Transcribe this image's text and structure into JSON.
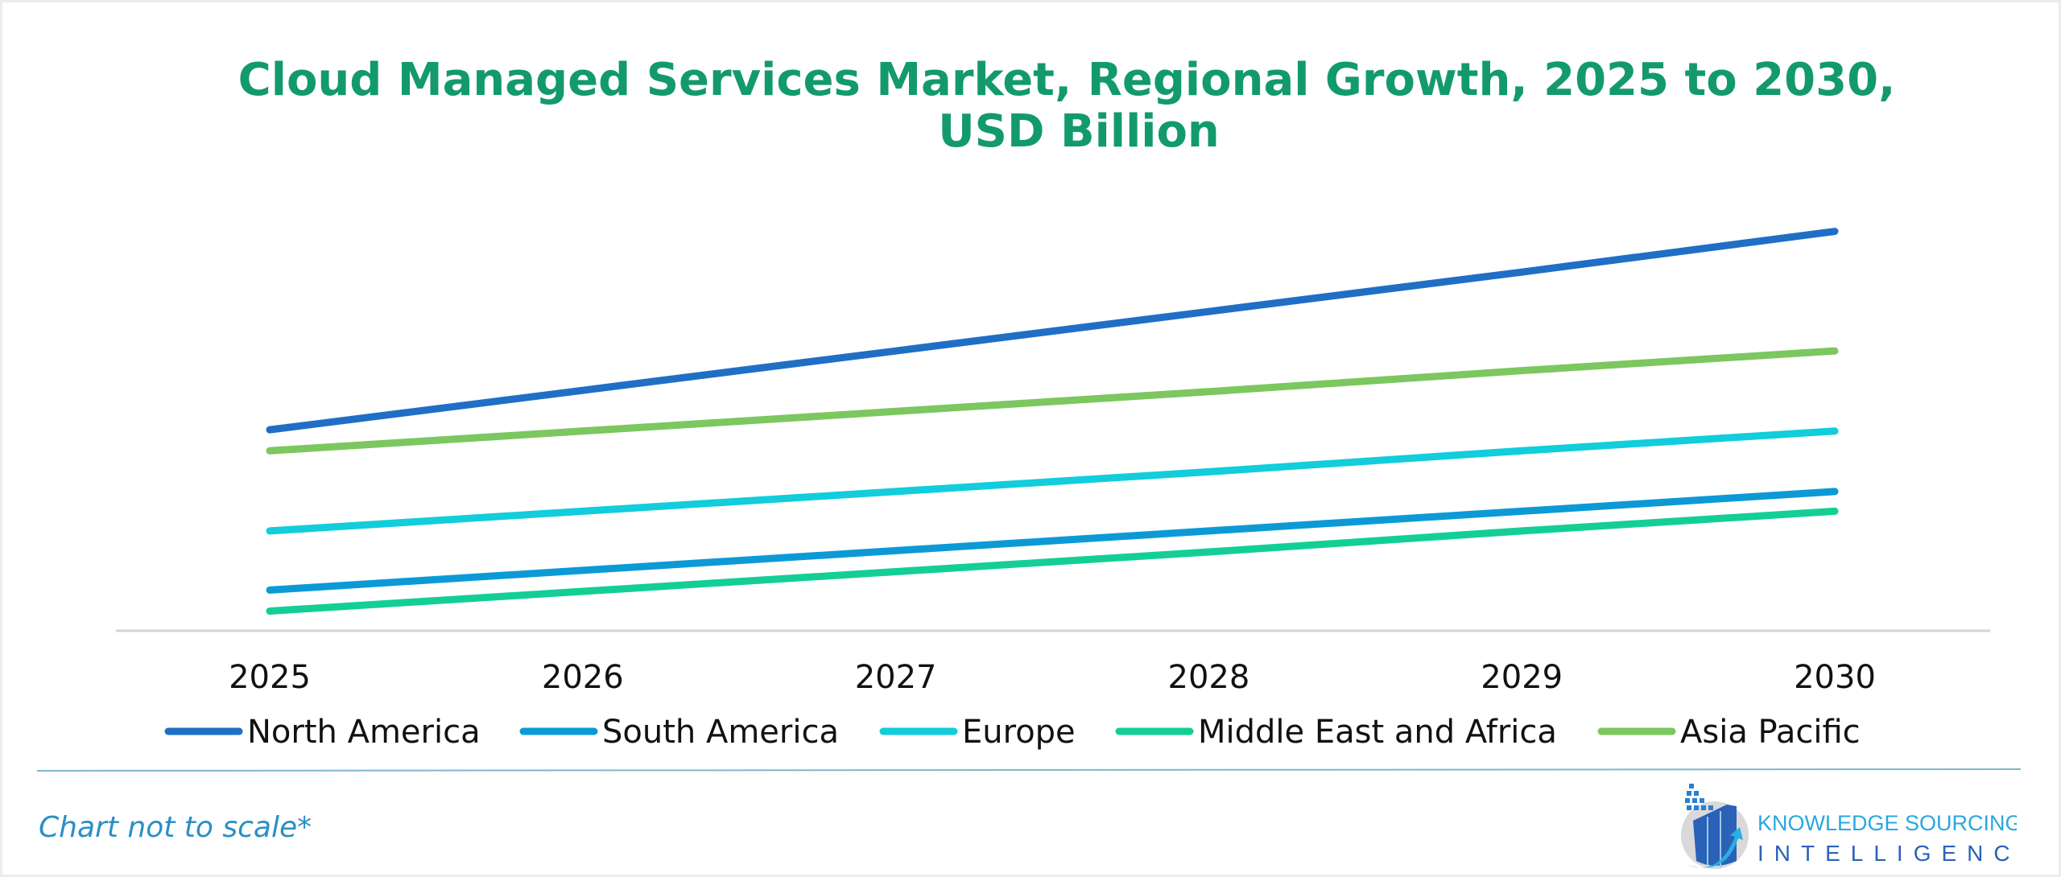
{
  "chart_data": {
    "type": "line",
    "title": "Cloud Managed Services Market, Regional Growth, 2025 to 2030,",
    "title_line2": "USD Billion",
    "categories": [
      "2025",
      "2026",
      "2027",
      "2028",
      "2029",
      "2030"
    ],
    "xlabel": "",
    "ylabel": "",
    "ylim": [
      0,
      32
    ],
    "y_axis_labels_shown": false,
    "grid": false,
    "legend_placement": "bottom",
    "series": [
      {
        "name": "North America",
        "color": "#1f6fc5",
        "values": [
          15.3,
          18.3,
          21.3,
          24.3,
          27.3,
          30.4
        ]
      },
      {
        "name": "South America",
        "color": "#0c9ad6",
        "values": [
          3.1,
          4.6,
          6.1,
          7.6,
          9.1,
          10.6
        ]
      },
      {
        "name": "Europe",
        "color": "#12cddb",
        "values": [
          7.6,
          9.1,
          10.6,
          12.1,
          13.7,
          15.2
        ]
      },
      {
        "name": "Middle East and Africa",
        "color": "#13cf95",
        "values": [
          1.5,
          3.0,
          4.5,
          6.0,
          7.6,
          9.1
        ]
      },
      {
        "name": "Asia Pacific",
        "color": "#7cc760",
        "values": [
          13.7,
          15.2,
          16.7,
          18.2,
          19.8,
          21.3
        ]
      }
    ]
  },
  "footnote": "Chart not to scale*",
  "logo": {
    "line1": "KNOWLEDGE SOURCING",
    "line2": "INTELLIGENCE"
  }
}
